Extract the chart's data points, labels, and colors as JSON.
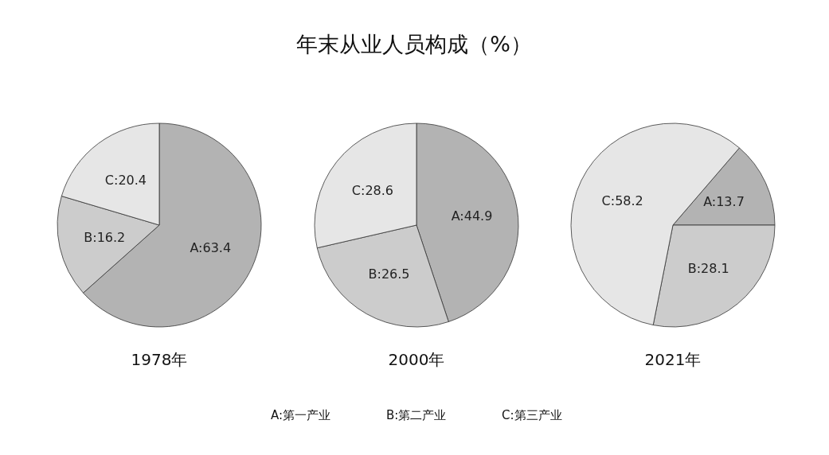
{
  "chart_data": [
    {
      "type": "pie",
      "title": "1978年",
      "categories": [
        null,
        null,
        null
      ],
      "values": [
        63.4,
        16.2,
        20.4
      ],
      "colors": [
        "#b3b3b3",
        "#cccccc",
        "#e6e6e6"
      ],
      "value_labels": [
        "A:63.4",
        "B:16.2",
        "C:20.4"
      ],
      "annotations": [
        "年末从业人员构成（%）",
        "A:第一产业",
        "B:第二产业",
        "C:第三产业"
      ]
    },
    {
      "type": "pie",
      "title": "2000年",
      "categories": [
        null,
        null,
        null
      ],
      "values": [
        44.9,
        26.5,
        28.6
      ],
      "colors": [
        "#b3b3b3",
        "#cccccc",
        "#e6e6e6"
      ],
      "value_labels": [
        "A:44.9",
        "B:26.5",
        "C:28.6"
      ]
    },
    {
      "type": "pie",
      "title": "2021年",
      "categories": [
        null,
        null,
        null
      ],
      "values": [
        13.7,
        28.1,
        58.2
      ],
      "colors": [
        "#b3b3b3",
        "#cccccc",
        "#e6e6e6"
      ],
      "value_labels": [
        "A:13.7",
        "B:28.1",
        "C:58.2"
      ]
    }
  ]
}
